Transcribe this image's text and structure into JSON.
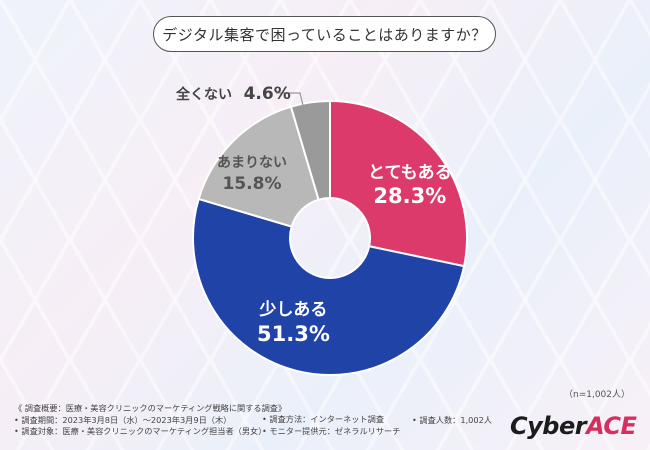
{
  "question": "デジタル集客で困っていることはありますか？",
  "sample_size": "（n=1,002人）",
  "footer": {
    "overview": "《 調査概要：医療・美容クリニックのマーケティング戦略に関する調査》",
    "period": "• 調査期間：2023年3月8日（水）～2023年3月9日（木）",
    "target": "• 調査対象：医療・美容クリニックのマーケティング担当者（男女）",
    "method": "• 調査方法：インターネット調査",
    "provider": "• モニター提供元：ゼネラルリサーチ",
    "count": "• 調査人数：1,002人"
  },
  "logo": {
    "main": "Cyber",
    "accent": "ACE"
  },
  "chart_data": {
    "type": "pie",
    "variant": "donut",
    "start_angle_deg": 0,
    "categories": [
      "とてもある",
      "少しある",
      "あまりない",
      "全くない"
    ],
    "values": [
      28.3,
      51.3,
      15.8,
      4.6
    ],
    "labels": [
      "28.3%",
      "51.3%",
      "15.8%",
      "4.6%"
    ],
    "colors": [
      "#dc3a6a",
      "#2043a8",
      "#b8b8b8",
      "#9a9a9a"
    ]
  }
}
